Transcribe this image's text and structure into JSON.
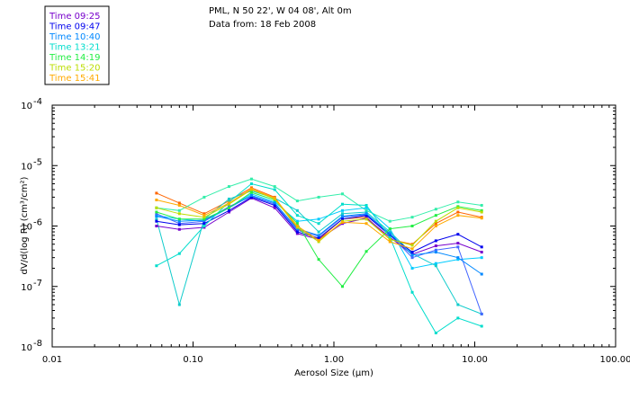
{
  "chart_data": {
    "type": "line",
    "title": "PML, N 50 22', W 04 08', Alt 0m",
    "subtitle": "Data from: 18 Feb 2008",
    "xlabel": "Aerosol Size (µm)",
    "ylabel": "dV/d(log R) (cm³/cm²)",
    "xscale": "log",
    "yscale": "log",
    "xlim": [
      0.01,
      100
    ],
    "ylim": [
      1e-08,
      0.0001
    ],
    "xticks": [
      {
        "value": 0.01,
        "label": "0.01"
      },
      {
        "value": 0.1,
        "label": "0.10"
      },
      {
        "value": 1,
        "label": "1.00"
      },
      {
        "value": 10,
        "label": "10.00"
      },
      {
        "value": 100,
        "label": "100.00"
      }
    ],
    "yticks": [
      {
        "value": 1e-08,
        "base": "10",
        "exp": "-8"
      },
      {
        "value": 1e-07,
        "base": "10",
        "exp": "-7"
      },
      {
        "value": 1e-06,
        "base": "10",
        "exp": "-6"
      },
      {
        "value": 1e-05,
        "base": "10",
        "exp": "-5"
      },
      {
        "value": 0.0001,
        "base": "10",
        "exp": "-4"
      }
    ],
    "x": [
      0.055,
      0.08,
      0.12,
      0.18,
      0.26,
      0.38,
      0.55,
      0.78,
      1.15,
      1.7,
      2.5,
      3.6,
      5.3,
      7.6,
      11.2
    ],
    "series": [
      {
        "name": "Time 09:25",
        "color": "#7700cc",
        "values": [
          1e-06,
          8.8e-07,
          9.5e-07,
          1.7e-06,
          2.9e-06,
          2e-06,
          7.5e-07,
          6e-07,
          1.1e-06,
          1.35e-06,
          6.5e-07,
          3.4e-07,
          4.7e-07,
          5.2e-07,
          3.7e-07
        ]
      },
      {
        "name": "Time 09:47",
        "color": "#0000ee",
        "values": [
          1.2e-06,
          1.05e-06,
          1.1e-06,
          1.8e-06,
          3e-06,
          2.2e-06,
          8e-07,
          6.3e-07,
          1.3e-06,
          1.5e-06,
          7e-07,
          3.7e-07,
          5.7e-07,
          7.3e-07,
          4.5e-07
        ]
      },
      {
        "name": "Time 10:40",
        "color": "#0088ff",
        "values": [
          1.45e-06,
          1.2e-06,
          1.25e-06,
          2e-06,
          3.2e-06,
          2.4e-06,
          9e-07,
          7e-07,
          1.45e-06,
          1.6e-06,
          7.5e-07,
          3.3e-07,
          3.7e-07,
          3e-07,
          1.6e-07
        ]
      },
      {
        "name": "Time 13:21",
        "color": "#00ddcc",
        "values": [
          2.2e-07,
          3.5e-07,
          1e-06,
          2.5e-06,
          5e-06,
          4e-06,
          1.5e-06,
          1.1e-06,
          2.3e-06,
          2.2e-06,
          6.5e-07,
          8e-08,
          1.7e-08,
          3e-08,
          2.2e-08
        ]
      },
      {
        "name": "Time 14:19",
        "color": "#22ee44",
        "values": [
          1.7e-06,
          1.3e-06,
          1.3e-06,
          2e-06,
          3.6e-06,
          2.7e-06,
          1.1e-06,
          2.8e-07,
          1e-07,
          3.8e-07,
          9e-07,
          1e-06,
          1.5e-06,
          2.1e-06,
          1.8e-06
        ]
      },
      {
        "name": "Time 15:20",
        "color": "#bbdd00",
        "values": [
          2e-06,
          1.6e-06,
          1.4e-06,
          2.3e-06,
          4e-06,
          2.8e-06,
          9.5e-07,
          5.5e-07,
          1.2e-06,
          1.3e-06,
          6e-07,
          4.8e-07,
          1.2e-06,
          2e-06,
          1.7e-06
        ]
      },
      {
        "name": "Time 15:41",
        "color": "#ffaa00",
        "values": [
          2.7e-06,
          2.2e-06,
          1.5e-06,
          2.4e-06,
          4.1e-06,
          2.9e-06,
          1e-06,
          5.8e-07,
          1.15e-06,
          1.1e-06,
          5.5e-07,
          4.2e-07,
          1e-06,
          1.5e-06,
          1.35e-06
        ]
      }
    ],
    "extra_traces": [
      {
        "color": "#ff6600",
        "values": [
          3.5e-06,
          2.4e-06,
          1.6e-06,
          2.6e-06,
          4.3e-06,
          3e-06,
          9e-07,
          6e-07,
          1.3e-06,
          1.4e-06,
          6e-07,
          5e-07,
          1.1e-06,
          1.7e-06,
          1.4e-06
        ]
      },
      {
        "color": "#33eeaa",
        "values": [
          2e-06,
          1.8e-06,
          3e-06,
          4.5e-06,
          6e-06,
          4.5e-06,
          2.6e-06,
          3e-06,
          3.4e-06,
          1.8e-06,
          1.2e-06,
          1.4e-06,
          1.9e-06,
          2.5e-06,
          2.2e-06
        ]
      },
      {
        "color": "#00ccff",
        "values": [
          1.5e-06,
          1.3e-06,
          1.2e-06,
          2e-06,
          3.4e-06,
          2.5e-06,
          1.2e-06,
          1.3e-06,
          1.8e-06,
          2e-06,
          9e-07,
          2e-07,
          2.4e-07,
          2.8e-07,
          3e-07
        ]
      },
      {
        "color": "#11cccc",
        "values": [
          1.3e-06,
          5e-08,
          1.3e-06,
          2.8e-06,
          3.8e-06,
          2.9e-06,
          1.8e-06,
          8e-07,
          1.6e-06,
          1.7e-06,
          8e-07,
          3.5e-07,
          2.2e-07,
          5e-08,
          3.5e-08
        ]
      },
      {
        "color": "#4466ff",
        "values": [
          1.6e-06,
          1.1e-06,
          1.2e-06,
          2.1e-06,
          3.1e-06,
          2.3e-06,
          8.5e-07,
          6.8e-07,
          1.4e-06,
          1.55e-06,
          7.2e-07,
          3e-07,
          4e-07,
          4.5e-07,
          3.5e-08
        ]
      }
    ]
  }
}
